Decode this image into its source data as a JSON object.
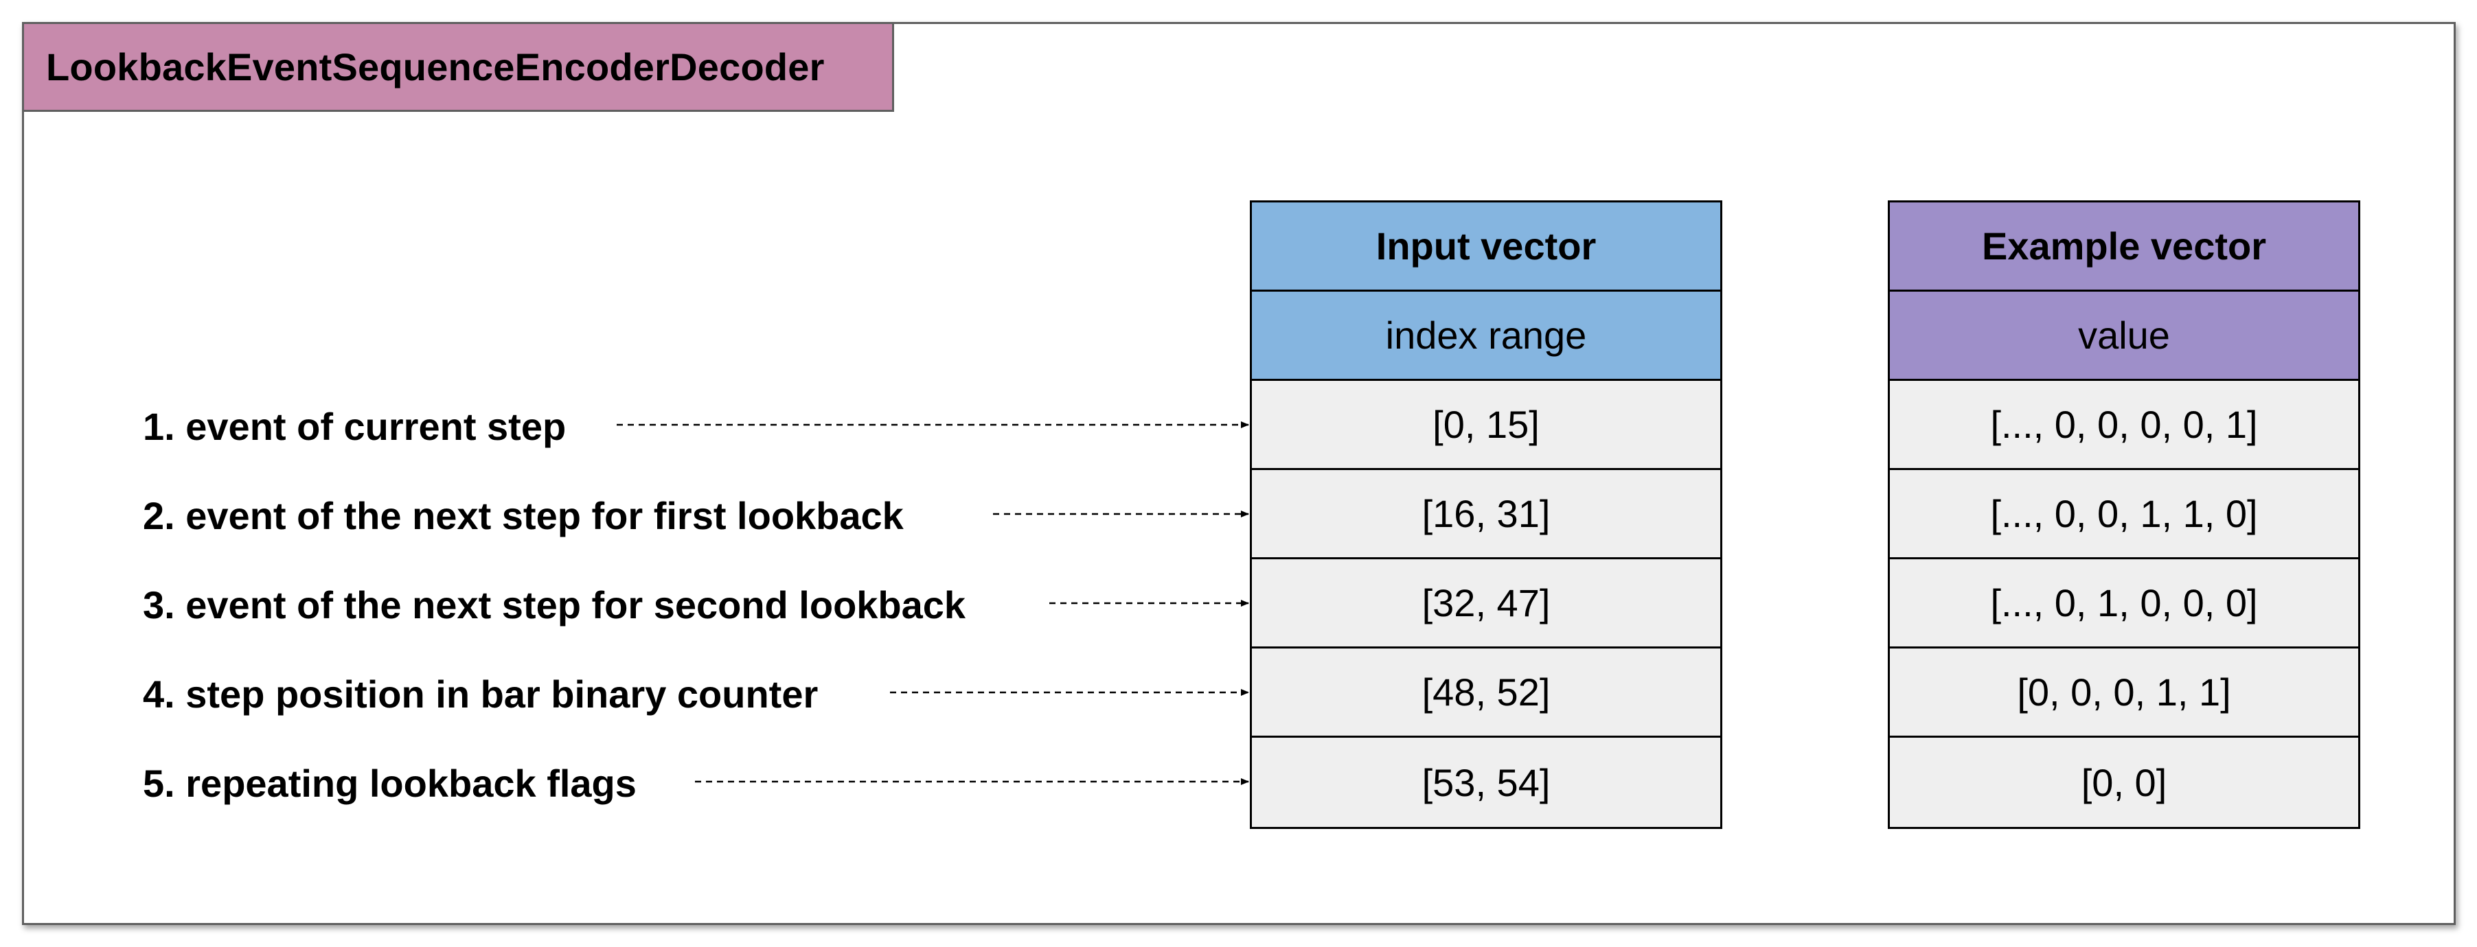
{
  "title": "LookbackEventSequenceEncoderDecoder",
  "colors": {
    "title_bg": "#c78aac",
    "input_header_bg": "#85b5e0",
    "example_header_bg": "#9e8fc9",
    "row_bg": "#efefef",
    "frame_border": "#5f5f5f"
  },
  "input_table": {
    "header": "Input vector",
    "subheader": "index range",
    "rows": [
      "[0, 15]",
      "[16, 31]",
      "[32, 47]",
      "[48, 52]",
      "[53, 54]"
    ]
  },
  "example_table": {
    "header": "Example vector",
    "subheader": "value",
    "rows": [
      "[..., 0, 0, 0, 0, 1]",
      "[..., 0, 0, 1, 1, 0]",
      "[..., 0, 1, 0, 0, 0]",
      "[0, 0, 0, 1, 1]",
      "[0, 0]"
    ]
  },
  "features": [
    "1. event of current step",
    "2. event of the next step for first lookback",
    "3. event of the next step for second lookback",
    "4. step position in bar binary counter",
    "5. repeating lookback flags"
  ]
}
